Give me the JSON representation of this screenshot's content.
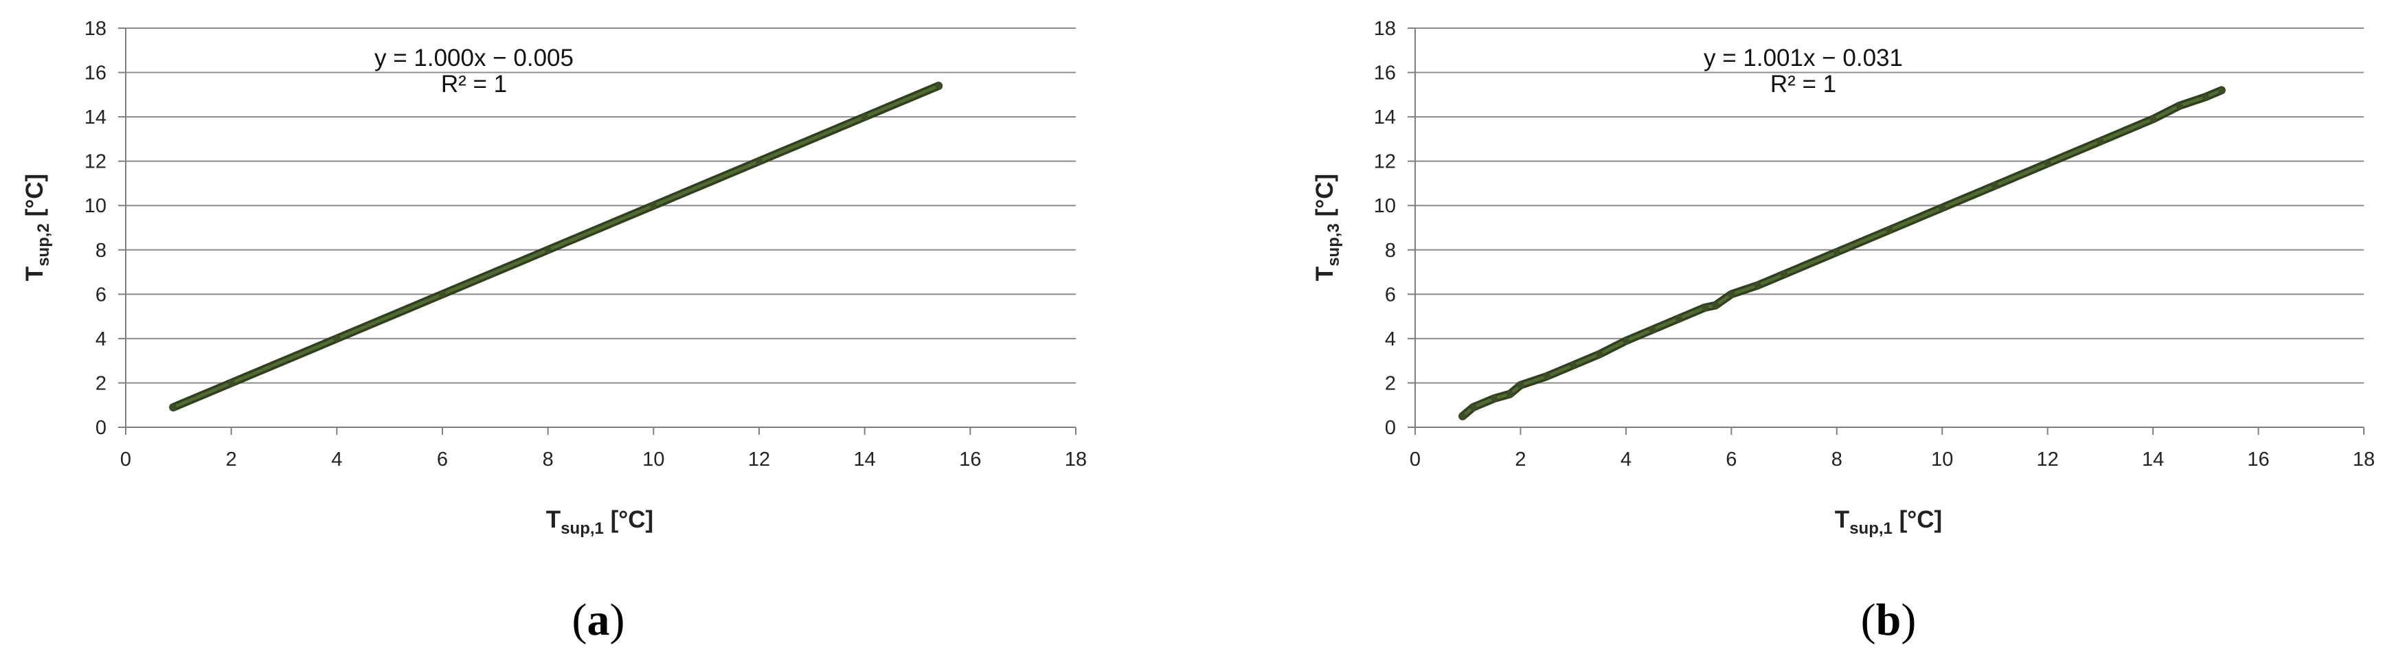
{
  "chart_data": [
    {
      "type": "scatter",
      "panel_label": "a",
      "xlabel": "T",
      "xlabel_sub": "sup,1",
      "xlabel_unit": " [°C]",
      "ylabel": "T",
      "ylabel_sub": "sup,2",
      "ylabel_unit": " [°C]",
      "xlim": [
        0,
        18
      ],
      "ylim": [
        0,
        18
      ],
      "xticks": [
        0,
        2,
        4,
        6,
        8,
        10,
        12,
        14,
        16,
        18
      ],
      "yticks": [
        0,
        2,
        4,
        6,
        8,
        10,
        12,
        14,
        16,
        18
      ],
      "grid": true,
      "annotations": [
        "y = 1.000x − 0.005",
        "R² = 1"
      ],
      "series": [
        {
          "color": "#3b4e25",
          "x": [
            0.9,
            2,
            4,
            6,
            8,
            10,
            12,
            14,
            15.4
          ],
          "y": [
            0.9,
            2,
            4,
            6,
            8,
            10,
            12,
            14,
            15.4
          ]
        }
      ]
    },
    {
      "type": "scatter",
      "panel_label": "b",
      "xlabel": "T",
      "xlabel_sub": "sup,1",
      "xlabel_unit": " [°C]",
      "ylabel": "T",
      "ylabel_sub": "sup,3",
      "ylabel_unit": " [°C]",
      "xlim": [
        0,
        18
      ],
      "ylim": [
        0,
        18
      ],
      "xticks": [
        0,
        2,
        4,
        6,
        8,
        10,
        12,
        14,
        16,
        18
      ],
      "yticks": [
        0,
        2,
        4,
        6,
        8,
        10,
        12,
        14,
        16,
        18
      ],
      "grid": true,
      "annotations": [
        "y = 1.001x − 0.031",
        "R² = 1"
      ],
      "series": [
        {
          "color": "#3b4e25",
          "x": [
            0.9,
            1.1,
            1.5,
            1.8,
            2,
            2.5,
            3,
            3.5,
            4,
            4.5,
            5,
            5.5,
            5.7,
            6,
            6.5,
            7,
            8,
            9,
            10,
            11,
            12,
            13,
            14,
            14.5,
            15,
            15.3
          ],
          "y": [
            0.5,
            0.9,
            1.3,
            1.5,
            1.9,
            2.3,
            2.8,
            3.3,
            3.9,
            4.4,
            4.9,
            5.4,
            5.5,
            6,
            6.4,
            6.9,
            7.9,
            8.9,
            9.9,
            10.9,
            11.9,
            12.9,
            13.9,
            14.5,
            14.9,
            15.2
          ]
        }
      ]
    }
  ]
}
